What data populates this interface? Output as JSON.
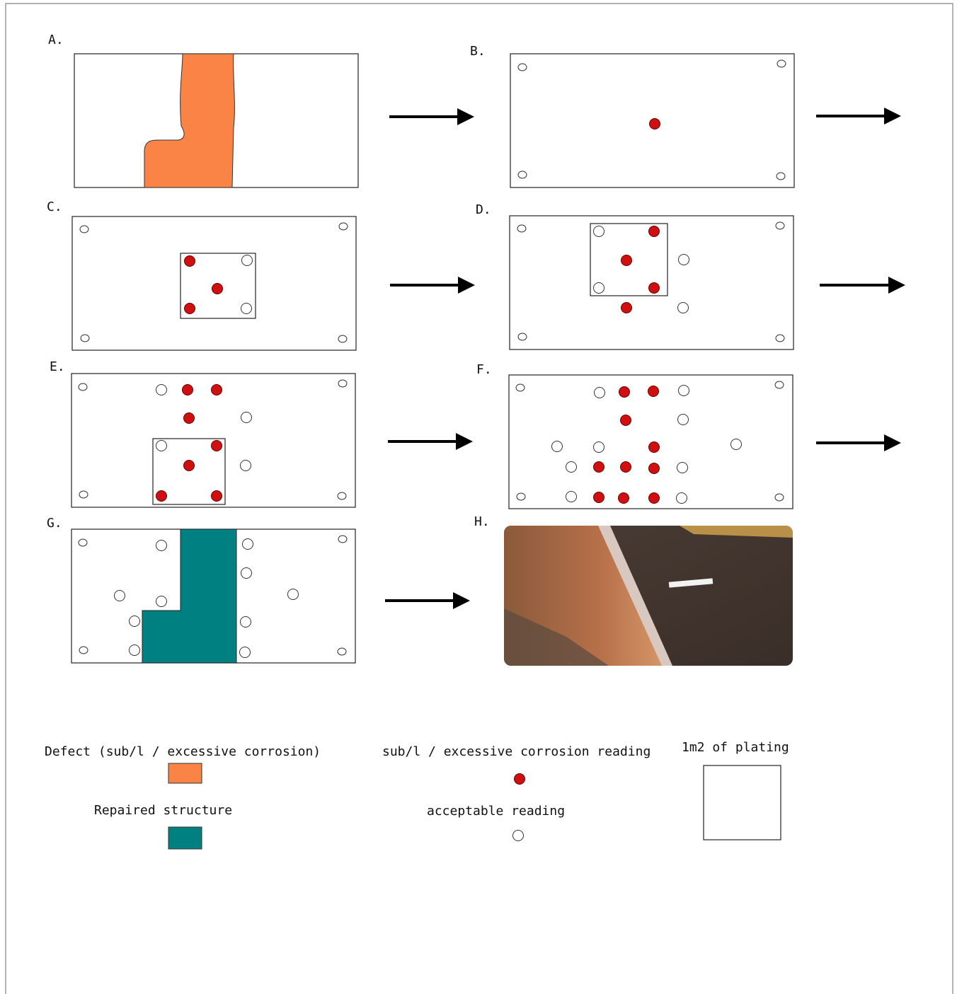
{
  "panels": [
    {
      "label": "A."
    },
    {
      "label": "B."
    },
    {
      "label": "C."
    },
    {
      "label": "D."
    },
    {
      "label": "E."
    },
    {
      "label": "F."
    },
    {
      "label": "G."
    },
    {
      "label": "H."
    }
  ],
  "legend": {
    "defect": "Defect (sub/l / excessive corrosion)",
    "repaired": "Repaired structure",
    "bad_reading": "sub/l / excessive corrosion reading",
    "good_reading": "acceptable reading",
    "plating": "1m2 of plating"
  }
}
